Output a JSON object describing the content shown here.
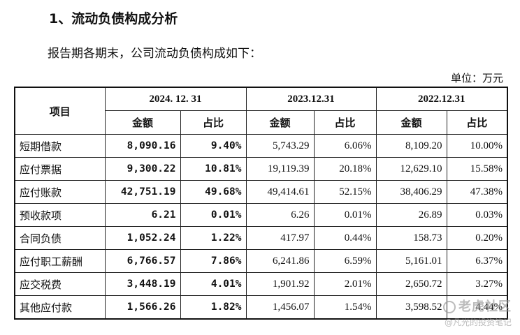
{
  "section_title": "1、流动负债构成分析",
  "intro": "报告期各期末，公司流动负债构成如下：",
  "unit": "单位：万元",
  "table": {
    "item_header": "项目",
    "periods": [
      "2024. 12. 31",
      "2023.12.31",
      "2022.12.31"
    ],
    "sub_headers": [
      "金额",
      "占比",
      "金额",
      "占比",
      "金额",
      "占比"
    ],
    "rows": [
      {
        "item": "短期借款",
        "v": [
          "8,090.16",
          "9.40%",
          "5,743.29",
          "6.06%",
          "8,109.20",
          "10.00%"
        ]
      },
      {
        "item": "应付票据",
        "v": [
          "9,300.22",
          "10.81%",
          "19,119.39",
          "20.18%",
          "12,629.10",
          "15.58%"
        ]
      },
      {
        "item": "应付账款",
        "v": [
          "42,751.19",
          "49.68%",
          "49,414.61",
          "52.15%",
          "38,406.29",
          "47.38%"
        ]
      },
      {
        "item": "预收款项",
        "v": [
          "6.21",
          "0.01%",
          "6.26",
          "0.01%",
          "26.89",
          "0.03%"
        ]
      },
      {
        "item": "合同负债",
        "v": [
          "1,052.24",
          "1.22%",
          "417.97",
          "0.44%",
          "158.73",
          "0.20%"
        ]
      },
      {
        "item": "应付职工薪酬",
        "v": [
          "6,766.57",
          "7.86%",
          "6,241.86",
          "6.59%",
          "5,161.01",
          "6.37%"
        ]
      },
      {
        "item": "应交税费",
        "v": [
          "3,448.19",
          "4.01%",
          "1,901.92",
          "2.01%",
          "2,650.72",
          "3.27%"
        ]
      },
      {
        "item": "其他应付款",
        "v": [
          "1,566.26",
          "1.82%",
          "1,456.07",
          "1.54%",
          "3,598.52",
          "4.44%"
        ]
      }
    ]
  },
  "watermark": {
    "logo_text": "老虎社区",
    "sub_text": "@凡光的投资笔记"
  }
}
